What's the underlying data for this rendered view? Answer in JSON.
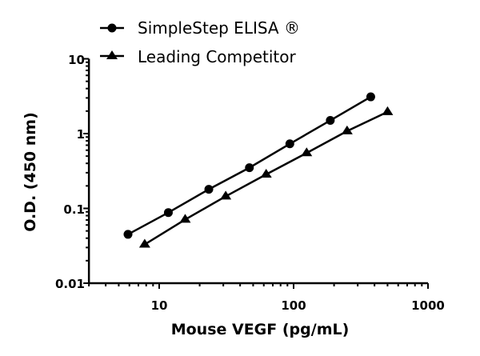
{
  "chart_data": {
    "type": "line",
    "title": "",
    "xlabel": "Mouse VEGF (pg/mL)",
    "ylabel": "O.D. (450 nm)",
    "xscale": "log",
    "yscale": "log",
    "xlim": [
      3,
      1000
    ],
    "ylim": [
      0.01,
      10
    ],
    "xticks": [
      "10",
      "100",
      "1000"
    ],
    "yticks": [
      "0.01",
      "0.1",
      "1",
      "10"
    ],
    "grid": false,
    "legend_position": "top",
    "series": [
      {
        "name": "SimpleStep ELISA ®",
        "marker": "circle",
        "color": "#000000",
        "x": [
          5.86,
          11.7,
          23.4,
          46.9,
          93.75,
          187.5,
          375
        ],
        "y": [
          0.045,
          0.088,
          0.18,
          0.35,
          0.73,
          1.5,
          3.1
        ]
      },
      {
        "name": "Leading Competitor",
        "marker": "triangle",
        "color": "#000000",
        "x": [
          7.8,
          15.6,
          31.25,
          62.5,
          125,
          250,
          500
        ],
        "y": [
          0.033,
          0.071,
          0.145,
          0.285,
          0.55,
          1.08,
          1.95
        ]
      }
    ]
  }
}
